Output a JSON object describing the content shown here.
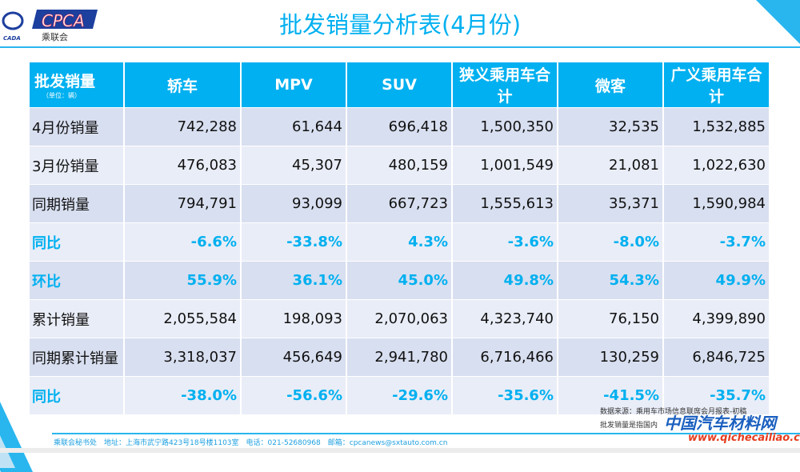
{
  "logo": {
    "text": "CPCA",
    "sub": "乘联会",
    "small": "CADA"
  },
  "title": "批发销量分析表(4月份)",
  "table": {
    "header": {
      "label": "批发销量",
      "unit": "（单位：辆）",
      "cols": [
        "轿车",
        "MPV",
        "SUV",
        "狭义乘用车合计",
        "微客",
        "广义乘用车合计"
      ]
    },
    "rows": [
      {
        "label": "4月份销量",
        "values": [
          "742,288",
          "61,644",
          "696,418",
          "1,500,350",
          "32,535",
          "1,532,885"
        ]
      },
      {
        "label": "3月份销量",
        "values": [
          "476,083",
          "45,307",
          "480,159",
          "1,001,549",
          "21,081",
          "1,022,630"
        ]
      },
      {
        "label": "同期销量",
        "values": [
          "794,791",
          "93,099",
          "667,723",
          "1,555,613",
          "35,371",
          "1,590,984"
        ]
      },
      {
        "label": "同比",
        "values": [
          "-6.6%",
          "-33.8%",
          "4.3%",
          "-3.6%",
          "-8.0%",
          "-3.7%"
        ]
      },
      {
        "label": "环比",
        "values": [
          "55.9%",
          "36.1%",
          "45.0%",
          "49.8%",
          "54.3%",
          "49.9%"
        ]
      },
      {
        "label": "累计销量",
        "values": [
          "2,055,584",
          "198,093",
          "2,070,063",
          "4,323,740",
          "76,150",
          "4,399,890"
        ]
      },
      {
        "label": "同期累计销量",
        "values": [
          "3,318,037",
          "456,649",
          "2,941,780",
          "6,716,466",
          "130,259",
          "6,846,725"
        ]
      },
      {
        "label": "同比",
        "values": [
          "-38.0%",
          "-56.6%",
          "-29.6%",
          "-35.6%",
          "-41.5%",
          "-35.7%"
        ]
      }
    ]
  },
  "notes": [
    "数据来源：乘用车市场信息联席会月报表-初稿",
    "批发销量是指国内"
  ],
  "footer": "乘联会秘书处　地址：上海市武宁路423号18号楼1103室　电话：021-52680968　邮箱：cpcanews@sxtauto.com.cn",
  "watermark": {
    "name": "中国汽车材料网",
    "url": "www.qichecailiao.com"
  },
  "colors": {
    "accent": "#00b0f0"
  }
}
